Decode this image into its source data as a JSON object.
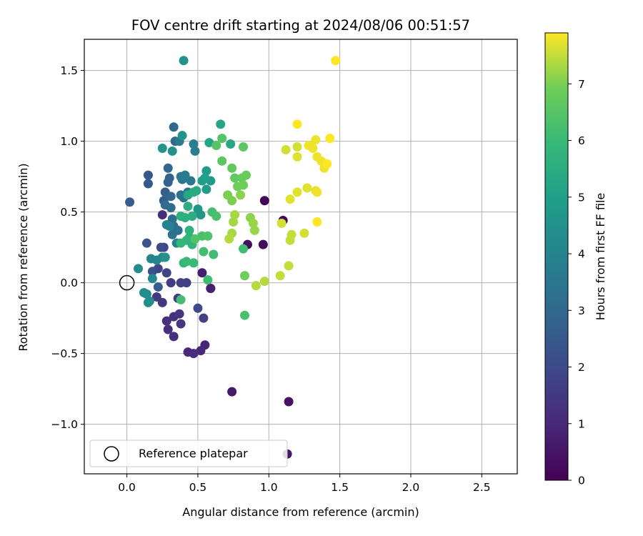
{
  "chart_data": {
    "type": "scatter",
    "title": "FOV centre drift starting at 2024/08/06 00:51:57",
    "xlabel": "Angular distance from reference (arcmin)",
    "ylabel": "Rotation from reference (arcmin)",
    "xlim": [
      -0.3,
      2.75
    ],
    "ylim": [
      -1.35,
      1.72
    ],
    "xticks": [
      0.0,
      0.5,
      1.0,
      1.5,
      2.0,
      2.5
    ],
    "xtick_labels": [
      "0.0",
      "0.5",
      "1.0",
      "1.5",
      "2.0",
      "2.5"
    ],
    "yticks": [
      -1.0,
      -0.5,
      0.0,
      0.5,
      1.0,
      1.5
    ],
    "ytick_labels": [
      "−1.0",
      "−0.5",
      "0.0",
      "0.5",
      "1.0",
      "1.5"
    ],
    "grid": true,
    "legend": {
      "placement": "lower-left",
      "entries": [
        {
          "label": "Reference platepar",
          "marker": "open-circle"
        }
      ]
    },
    "reference_point": {
      "x": 0.0,
      "y": 0.0
    },
    "colorbar": {
      "label": "Hours from first FF file",
      "colormap": "viridis",
      "min": 0,
      "max": 7.9,
      "ticks": [
        0,
        1,
        2,
        3,
        4,
        5,
        6,
        7
      ],
      "tick_labels": [
        "0",
        "1",
        "2",
        "3",
        "4",
        "5",
        "6",
        "7"
      ]
    },
    "points": [
      {
        "x": 0.97,
        "y": 0.58,
        "h": 0.1
      },
      {
        "x": 1.1,
        "y": 0.44,
        "h": 0.1
      },
      {
        "x": 0.96,
        "y": 0.27,
        "h": 0.2
      },
      {
        "x": 0.85,
        "y": 0.27,
        "h": 0.3
      },
      {
        "x": 1.14,
        "y": -0.84,
        "h": 0.4
      },
      {
        "x": 1.13,
        "y": -1.21,
        "h": 0.5
      },
      {
        "x": 0.74,
        "y": -0.77,
        "h": 0.6
      },
      {
        "x": 0.53,
        "y": 0.07,
        "h": 0.7
      },
      {
        "x": 0.59,
        "y": -0.04,
        "h": 0.8
      },
      {
        "x": 0.59,
        "y": -0.04,
        "h": 0.8
      },
      {
        "x": 0.55,
        "y": -0.44,
        "h": 0.9
      },
      {
        "x": 0.52,
        "y": -0.48,
        "h": 1.0
      },
      {
        "x": 0.43,
        "y": -0.49,
        "h": 1.0
      },
      {
        "x": 0.47,
        "y": -0.5,
        "h": 1.1
      },
      {
        "x": 0.33,
        "y": -0.38,
        "h": 1.2
      },
      {
        "x": 0.29,
        "y": -0.33,
        "h": 1.2
      },
      {
        "x": 0.28,
        "y": -0.27,
        "h": 1.3
      },
      {
        "x": 0.33,
        "y": -0.24,
        "h": 1.3
      },
      {
        "x": 0.37,
        "y": -0.22,
        "h": 1.4
      },
      {
        "x": 0.38,
        "y": -0.29,
        "h": 1.4
      },
      {
        "x": 0.25,
        "y": -0.14,
        "h": 1.5
      },
      {
        "x": 0.21,
        "y": -0.1,
        "h": 1.5
      },
      {
        "x": 0.36,
        "y": -0.11,
        "h": 1.6
      },
      {
        "x": 0.31,
        "y": 0.0,
        "h": 1.6
      },
      {
        "x": 0.38,
        "y": 0.0,
        "h": 1.7
      },
      {
        "x": 0.42,
        "y": 0.0,
        "h": 1.7
      },
      {
        "x": 0.54,
        "y": -0.25,
        "h": 1.8
      },
      {
        "x": 0.28,
        "y": 0.07,
        "h": 1.8
      },
      {
        "x": 0.22,
        "y": 0.1,
        "h": 1.9
      },
      {
        "x": 0.26,
        "y": 0.25,
        "h": 1.9
      },
      {
        "x": 0.24,
        "y": 0.25,
        "h": 2.0
      },
      {
        "x": 0.5,
        "y": -0.18,
        "h": 2.0
      },
      {
        "x": 0.25,
        "y": 0.48,
        "h": 1.1
      },
      {
        "x": 0.18,
        "y": 0.08,
        "h": 2.2
      },
      {
        "x": 0.14,
        "y": 0.28,
        "h": 2.4
      },
      {
        "x": 0.15,
        "y": 0.7,
        "h": 2.5
      },
      {
        "x": 0.15,
        "y": 0.76,
        "h": 2.5
      },
      {
        "x": 0.02,
        "y": 0.57,
        "h": 2.6
      },
      {
        "x": 0.22,
        "y": -0.03,
        "h": 2.6
      },
      {
        "x": 0.26,
        "y": 0.58,
        "h": 2.7
      },
      {
        "x": 0.27,
        "y": 0.64,
        "h": 2.7
      },
      {
        "x": 0.29,
        "y": 0.71,
        "h": 2.8
      },
      {
        "x": 0.3,
        "y": 0.74,
        "h": 2.8
      },
      {
        "x": 0.29,
        "y": 0.81,
        "h": 2.9
      },
      {
        "x": 0.31,
        "y": 0.61,
        "h": 2.9
      },
      {
        "x": 0.34,
        "y": 1.0,
        "h": 3.0
      },
      {
        "x": 0.33,
        "y": 1.1,
        "h": 3.0
      },
      {
        "x": 0.27,
        "y": 0.55,
        "h": 3.1
      },
      {
        "x": 0.31,
        "y": 0.53,
        "h": 3.1
      },
      {
        "x": 0.32,
        "y": 0.45,
        "h": 3.2
      },
      {
        "x": 0.33,
        "y": 0.4,
        "h": 3.2
      },
      {
        "x": 0.32,
        "y": 0.34,
        "h": 3.3
      },
      {
        "x": 0.36,
        "y": 0.37,
        "h": 3.3
      },
      {
        "x": 0.38,
        "y": 0.62,
        "h": 3.4
      },
      {
        "x": 0.4,
        "y": 0.6,
        "h": 3.4
      },
      {
        "x": 0.43,
        "y": 0.64,
        "h": 3.5
      },
      {
        "x": 0.39,
        "y": 0.73,
        "h": 3.5
      },
      {
        "x": 0.38,
        "y": 0.75,
        "h": 3.6
      },
      {
        "x": 0.45,
        "y": 0.72,
        "h": 3.6
      },
      {
        "x": 0.41,
        "y": 0.76,
        "h": 3.7
      },
      {
        "x": 0.37,
        "y": 1.0,
        "h": 3.7
      },
      {
        "x": 0.47,
        "y": 0.98,
        "h": 3.8
      },
      {
        "x": 0.48,
        "y": 0.93,
        "h": 3.8
      },
      {
        "x": 0.28,
        "y": 0.41,
        "h": 3.9
      },
      {
        "x": 0.3,
        "y": 0.4,
        "h": 3.9
      },
      {
        "x": 0.35,
        "y": 0.28,
        "h": 4.0
      },
      {
        "x": 0.25,
        "y": 0.18,
        "h": 4.0
      },
      {
        "x": 0.21,
        "y": 0.16,
        "h": 4.1
      },
      {
        "x": 0.17,
        "y": 0.17,
        "h": 4.1
      },
      {
        "x": 0.18,
        "y": 0.03,
        "h": 4.2
      },
      {
        "x": 0.16,
        "y": -0.13,
        "h": 4.2
      },
      {
        "x": 0.12,
        "y": -0.07,
        "h": 4.3
      },
      {
        "x": 0.08,
        "y": 0.1,
        "h": 4.3
      },
      {
        "x": 0.14,
        "y": -0.08,
        "h": 4.4
      },
      {
        "x": 0.15,
        "y": -0.14,
        "h": 4.4
      },
      {
        "x": 0.27,
        "y": 0.18,
        "h": 4.5
      },
      {
        "x": 0.32,
        "y": 0.93,
        "h": 4.5
      },
      {
        "x": 0.25,
        "y": 0.95,
        "h": 4.6
      },
      {
        "x": 0.39,
        "y": 1.04,
        "h": 4.6
      },
      {
        "x": 0.5,
        "y": 0.52,
        "h": 4.7
      },
      {
        "x": 0.52,
        "y": 0.48,
        "h": 4.7
      },
      {
        "x": 0.56,
        "y": 0.66,
        "h": 4.8
      },
      {
        "x": 0.59,
        "y": 0.72,
        "h": 4.8
      },
      {
        "x": 0.53,
        "y": 0.72,
        "h": 4.9
      },
      {
        "x": 0.56,
        "y": 0.79,
        "h": 4.9
      },
      {
        "x": 0.55,
        "y": 0.74,
        "h": 5.0
      },
      {
        "x": 0.4,
        "y": 1.57,
        "h": 4.5
      },
      {
        "x": 0.66,
        "y": 1.12,
        "h": 5.2
      },
      {
        "x": 0.58,
        "y": 0.99,
        "h": 5.2
      },
      {
        "x": 0.73,
        "y": 0.98,
        "h": 5.3
      },
      {
        "x": 0.43,
        "y": 0.62,
        "h": 5.3
      },
      {
        "x": 0.47,
        "y": 0.64,
        "h": 5.4
      },
      {
        "x": 0.49,
        "y": 0.65,
        "h": 5.4
      },
      {
        "x": 0.43,
        "y": 0.54,
        "h": 5.5
      },
      {
        "x": 0.46,
        "y": 0.47,
        "h": 5.5
      },
      {
        "x": 0.38,
        "y": 0.47,
        "h": 5.6
      },
      {
        "x": 0.41,
        "y": 0.46,
        "h": 5.6
      },
      {
        "x": 0.44,
        "y": 0.37,
        "h": 5.7
      },
      {
        "x": 0.44,
        "y": 0.32,
        "h": 5.7
      },
      {
        "x": 0.42,
        "y": 0.3,
        "h": 5.8
      },
      {
        "x": 0.46,
        "y": 0.27,
        "h": 5.8
      },
      {
        "x": 0.38,
        "y": 0.28,
        "h": 5.9
      },
      {
        "x": 0.4,
        "y": 0.14,
        "h": 5.9
      },
      {
        "x": 0.42,
        "y": 0.15,
        "h": 6.0
      },
      {
        "x": 0.47,
        "y": 0.14,
        "h": 6.0
      },
      {
        "x": 0.57,
        "y": 0.02,
        "h": 6.1
      },
      {
        "x": 0.61,
        "y": 0.2,
        "h": 6.1
      },
      {
        "x": 0.54,
        "y": 0.22,
        "h": 6.2
      },
      {
        "x": 0.38,
        "y": -0.12,
        "h": 6.2
      },
      {
        "x": 0.6,
        "y": 0.5,
        "h": 6.2
      },
      {
        "x": 0.63,
        "y": 0.47,
        "h": 6.3
      },
      {
        "x": 0.53,
        "y": 0.33,
        "h": 6.3
      },
      {
        "x": 0.57,
        "y": 0.33,
        "h": 6.4
      },
      {
        "x": 0.48,
        "y": 0.31,
        "h": 6.4
      },
      {
        "x": 0.63,
        "y": 0.97,
        "h": 6.5
      },
      {
        "x": 0.67,
        "y": 1.02,
        "h": 6.5
      },
      {
        "x": 0.82,
        "y": 0.96,
        "h": 6.6
      },
      {
        "x": 0.67,
        "y": 0.86,
        "h": 6.6
      },
      {
        "x": 0.74,
        "y": 0.81,
        "h": 6.7
      },
      {
        "x": 0.76,
        "y": 0.74,
        "h": 6.7
      },
      {
        "x": 0.81,
        "y": 0.74,
        "h": 6.8
      },
      {
        "x": 0.84,
        "y": 0.76,
        "h": 6.8
      },
      {
        "x": 0.82,
        "y": 0.69,
        "h": 6.9
      },
      {
        "x": 0.78,
        "y": 0.68,
        "h": 6.9
      },
      {
        "x": 0.71,
        "y": 0.62,
        "h": 7.0
      },
      {
        "x": 0.74,
        "y": 0.58,
        "h": 7.0
      },
      {
        "x": 0.8,
        "y": 0.62,
        "h": 7.1
      },
      {
        "x": 0.82,
        "y": 0.24,
        "h": 6.1
      },
      {
        "x": 0.83,
        "y": 0.05,
        "h": 6.9
      },
      {
        "x": 0.83,
        "y": -0.23,
        "h": 6.3
      },
      {
        "x": 0.87,
        "y": 0.46,
        "h": 7.1
      },
      {
        "x": 0.89,
        "y": 0.42,
        "h": 7.2
      },
      {
        "x": 0.9,
        "y": 0.37,
        "h": 7.2
      },
      {
        "x": 0.76,
        "y": 0.48,
        "h": 7.3
      },
      {
        "x": 0.75,
        "y": 0.43,
        "h": 7.3
      },
      {
        "x": 0.74,
        "y": 0.35,
        "h": 7.3
      },
      {
        "x": 0.72,
        "y": 0.31,
        "h": 7.4
      },
      {
        "x": 0.91,
        "y": -0.02,
        "h": 7.4
      },
      {
        "x": 0.97,
        "y": 0.01,
        "h": 7.4
      },
      {
        "x": 1.08,
        "y": 0.05,
        "h": 7.5
      },
      {
        "x": 1.14,
        "y": 0.12,
        "h": 7.5
      },
      {
        "x": 1.15,
        "y": 0.3,
        "h": 7.5
      },
      {
        "x": 1.16,
        "y": 0.34,
        "h": 7.5
      },
      {
        "x": 1.25,
        "y": 0.35,
        "h": 7.6
      },
      {
        "x": 1.09,
        "y": 0.42,
        "h": 7.6
      },
      {
        "x": 1.12,
        "y": 0.94,
        "h": 7.6
      },
      {
        "x": 1.2,
        "y": 0.96,
        "h": 7.6
      },
      {
        "x": 1.2,
        "y": 0.89,
        "h": 7.7
      },
      {
        "x": 1.2,
        "y": 0.64,
        "h": 7.7
      },
      {
        "x": 1.15,
        "y": 0.59,
        "h": 7.7
      },
      {
        "x": 1.27,
        "y": 0.67,
        "h": 7.7
      },
      {
        "x": 1.33,
        "y": 0.65,
        "h": 7.7
      },
      {
        "x": 1.34,
        "y": 0.64,
        "h": 7.8
      },
      {
        "x": 1.28,
        "y": 0.97,
        "h": 7.8
      },
      {
        "x": 1.31,
        "y": 0.95,
        "h": 7.8
      },
      {
        "x": 1.34,
        "y": 0.89,
        "h": 7.8
      },
      {
        "x": 1.33,
        "y": 1.01,
        "h": 7.8
      },
      {
        "x": 1.37,
        "y": 0.86,
        "h": 7.8
      },
      {
        "x": 1.39,
        "y": 0.81,
        "h": 7.8
      },
      {
        "x": 1.41,
        "y": 0.84,
        "h": 7.9
      },
      {
        "x": 1.43,
        "y": 1.02,
        "h": 7.9
      },
      {
        "x": 1.2,
        "y": 1.12,
        "h": 7.9
      },
      {
        "x": 1.34,
        "y": 0.43,
        "h": 7.9
      },
      {
        "x": 1.47,
        "y": 1.57,
        "h": 7.9
      }
    ]
  }
}
